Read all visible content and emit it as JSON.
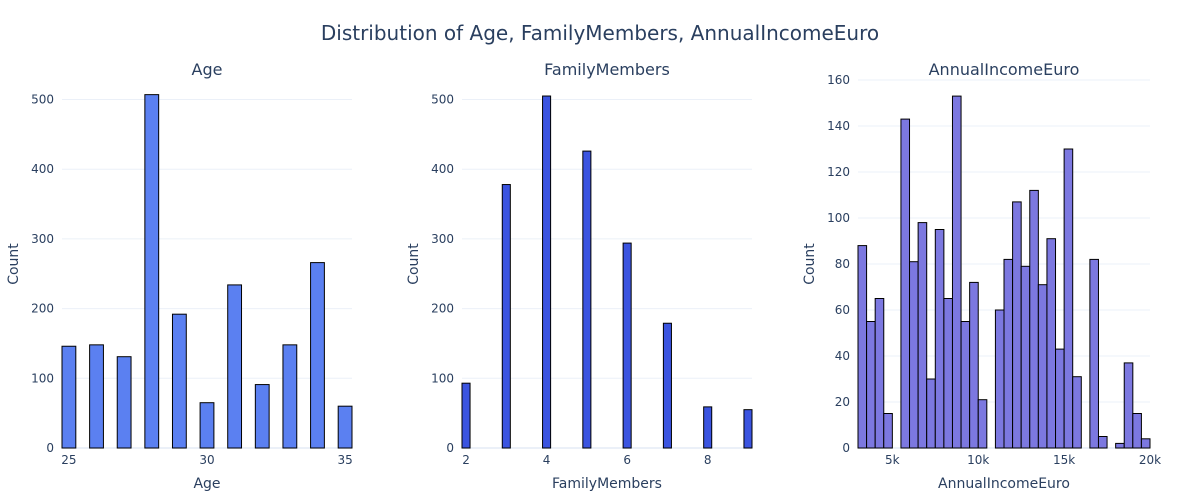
{
  "figure": {
    "title": "Distribution of Age, FamilyMembers, AnnualIncomeEuro"
  },
  "chart_data": [
    {
      "type": "bar",
      "title": "Age",
      "xlabel": "Age",
      "ylabel": "Count",
      "color": "#5b80f1",
      "xlim": [
        24.75,
        35.25
      ],
      "ylim": [
        0,
        528
      ],
      "xticks": [
        25,
        30,
        35
      ],
      "xtick_labels": [
        "25",
        "30",
        "35"
      ],
      "yticks": [
        0,
        100,
        200,
        300,
        400,
        500
      ],
      "bar_width": 0.5,
      "x": [
        25,
        26,
        27,
        28,
        29,
        30,
        31,
        32,
        33,
        34,
        35
      ],
      "values": [
        146,
        148,
        131,
        507,
        192,
        65,
        234,
        91,
        148,
        266,
        60
      ]
    },
    {
      "type": "bar",
      "title": "FamilyMembers",
      "xlabel": "FamilyMembers",
      "ylabel": "Count",
      "color": "#3b54e0",
      "xlim": [
        1.9,
        9.1
      ],
      "ylim": [
        0,
        528
      ],
      "xticks": [
        2,
        4,
        6,
        8
      ],
      "xtick_labels": [
        "2",
        "4",
        "6",
        "8"
      ],
      "yticks": [
        0,
        100,
        200,
        300,
        400,
        500
      ],
      "bar_width": 0.2,
      "x": [
        2,
        3,
        4,
        5,
        6,
        7,
        8,
        9
      ],
      "values": [
        93,
        378,
        505,
        426,
        294,
        179,
        59,
        55
      ]
    },
    {
      "type": "bar",
      "title": "AnnualIncomeEuro",
      "xlabel": "AnnualIncomeEuro",
      "ylabel": "Count",
      "color": "#7c78e0",
      "xlim": [
        3000,
        20000
      ],
      "ylim": [
        0,
        160
      ],
      "xticks": [
        5000,
        10000,
        15000,
        20000
      ],
      "xtick_labels": [
        "5k",
        "10k",
        "15k",
        "20k"
      ],
      "yticks": [
        0,
        20,
        40,
        60,
        80,
        100,
        120,
        140,
        160
      ],
      "bar_width": 500,
      "x": [
        3250,
        3750,
        4250,
        4750,
        5750,
        6250,
        6750,
        7250,
        7750,
        8250,
        8750,
        9250,
        9750,
        10250,
        11250,
        11750,
        12250,
        12750,
        13250,
        13750,
        14250,
        14750,
        15250,
        15750,
        16750,
        17250,
        18250,
        18750,
        19250,
        19750
      ],
      "values": [
        88,
        55,
        65,
        15,
        143,
        81,
        98,
        30,
        95,
        65,
        153,
        55,
        72,
        21,
        60,
        82,
        107,
        79,
        112,
        71,
        91,
        43,
        130,
        31,
        82,
        5,
        2,
        37,
        15,
        4
      ]
    }
  ]
}
